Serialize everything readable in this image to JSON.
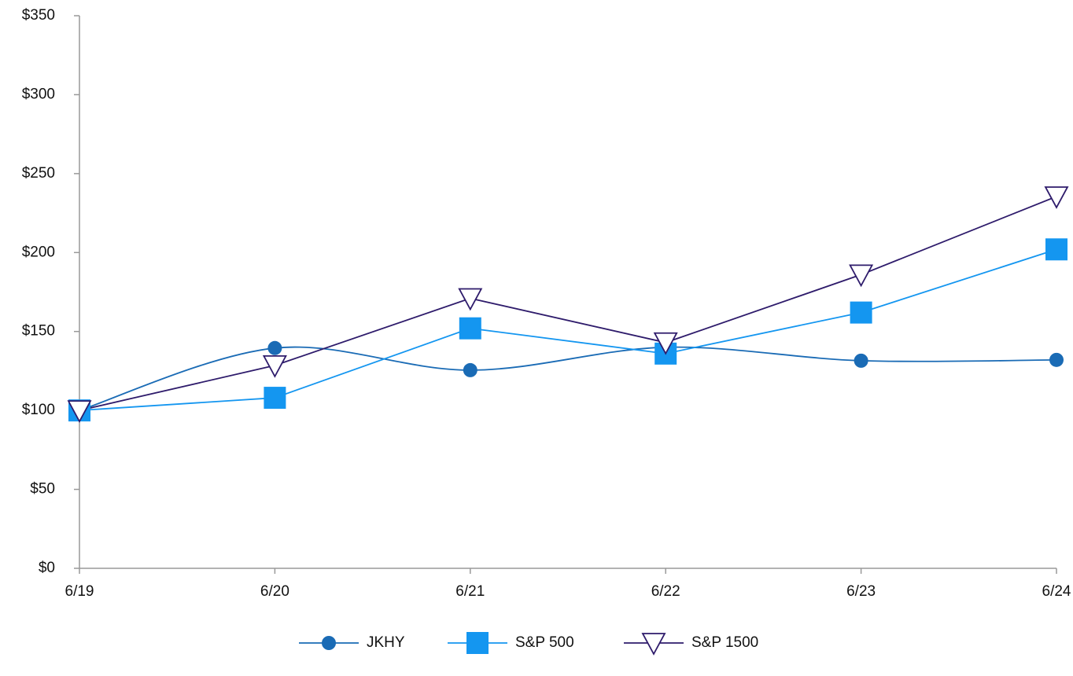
{
  "chart_data": {
    "type": "line",
    "categories": [
      "6/19",
      "6/20",
      "6/21",
      "6/22",
      "6/23",
      "6/24"
    ],
    "series": [
      {
        "name": "JKHY",
        "color": "#1a6bb5",
        "marker": "circle",
        "smooth": true,
        "values": [
          100,
          139.5,
          125.5,
          140,
          131.5,
          132
        ]
      },
      {
        "name": "S&P 500",
        "color": "#1496f0",
        "marker": "square",
        "smooth": false,
        "values": [
          100,
          108,
          152,
          136,
          162,
          202
        ]
      },
      {
        "name": "S&P 1500",
        "color": "#2e1b6b",
        "marker": "triangle-down",
        "smooth": false,
        "values": [
          100,
          128.5,
          171,
          143,
          186,
          235.5
        ]
      }
    ],
    "ylim": [
      0,
      350
    ],
    "yticks": [
      {
        "value": 0,
        "label": "$0"
      },
      {
        "value": 50,
        "label": "$50"
      },
      {
        "value": 100,
        "label": "$100"
      },
      {
        "value": 150,
        "label": "$150"
      },
      {
        "value": 200,
        "label": "$200"
      },
      {
        "value": 250,
        "label": "$250"
      },
      {
        "value": 300,
        "label": "$300"
      },
      {
        "value": 350,
        "label": "$350"
      }
    ],
    "grid": false,
    "legend": "bottom"
  }
}
